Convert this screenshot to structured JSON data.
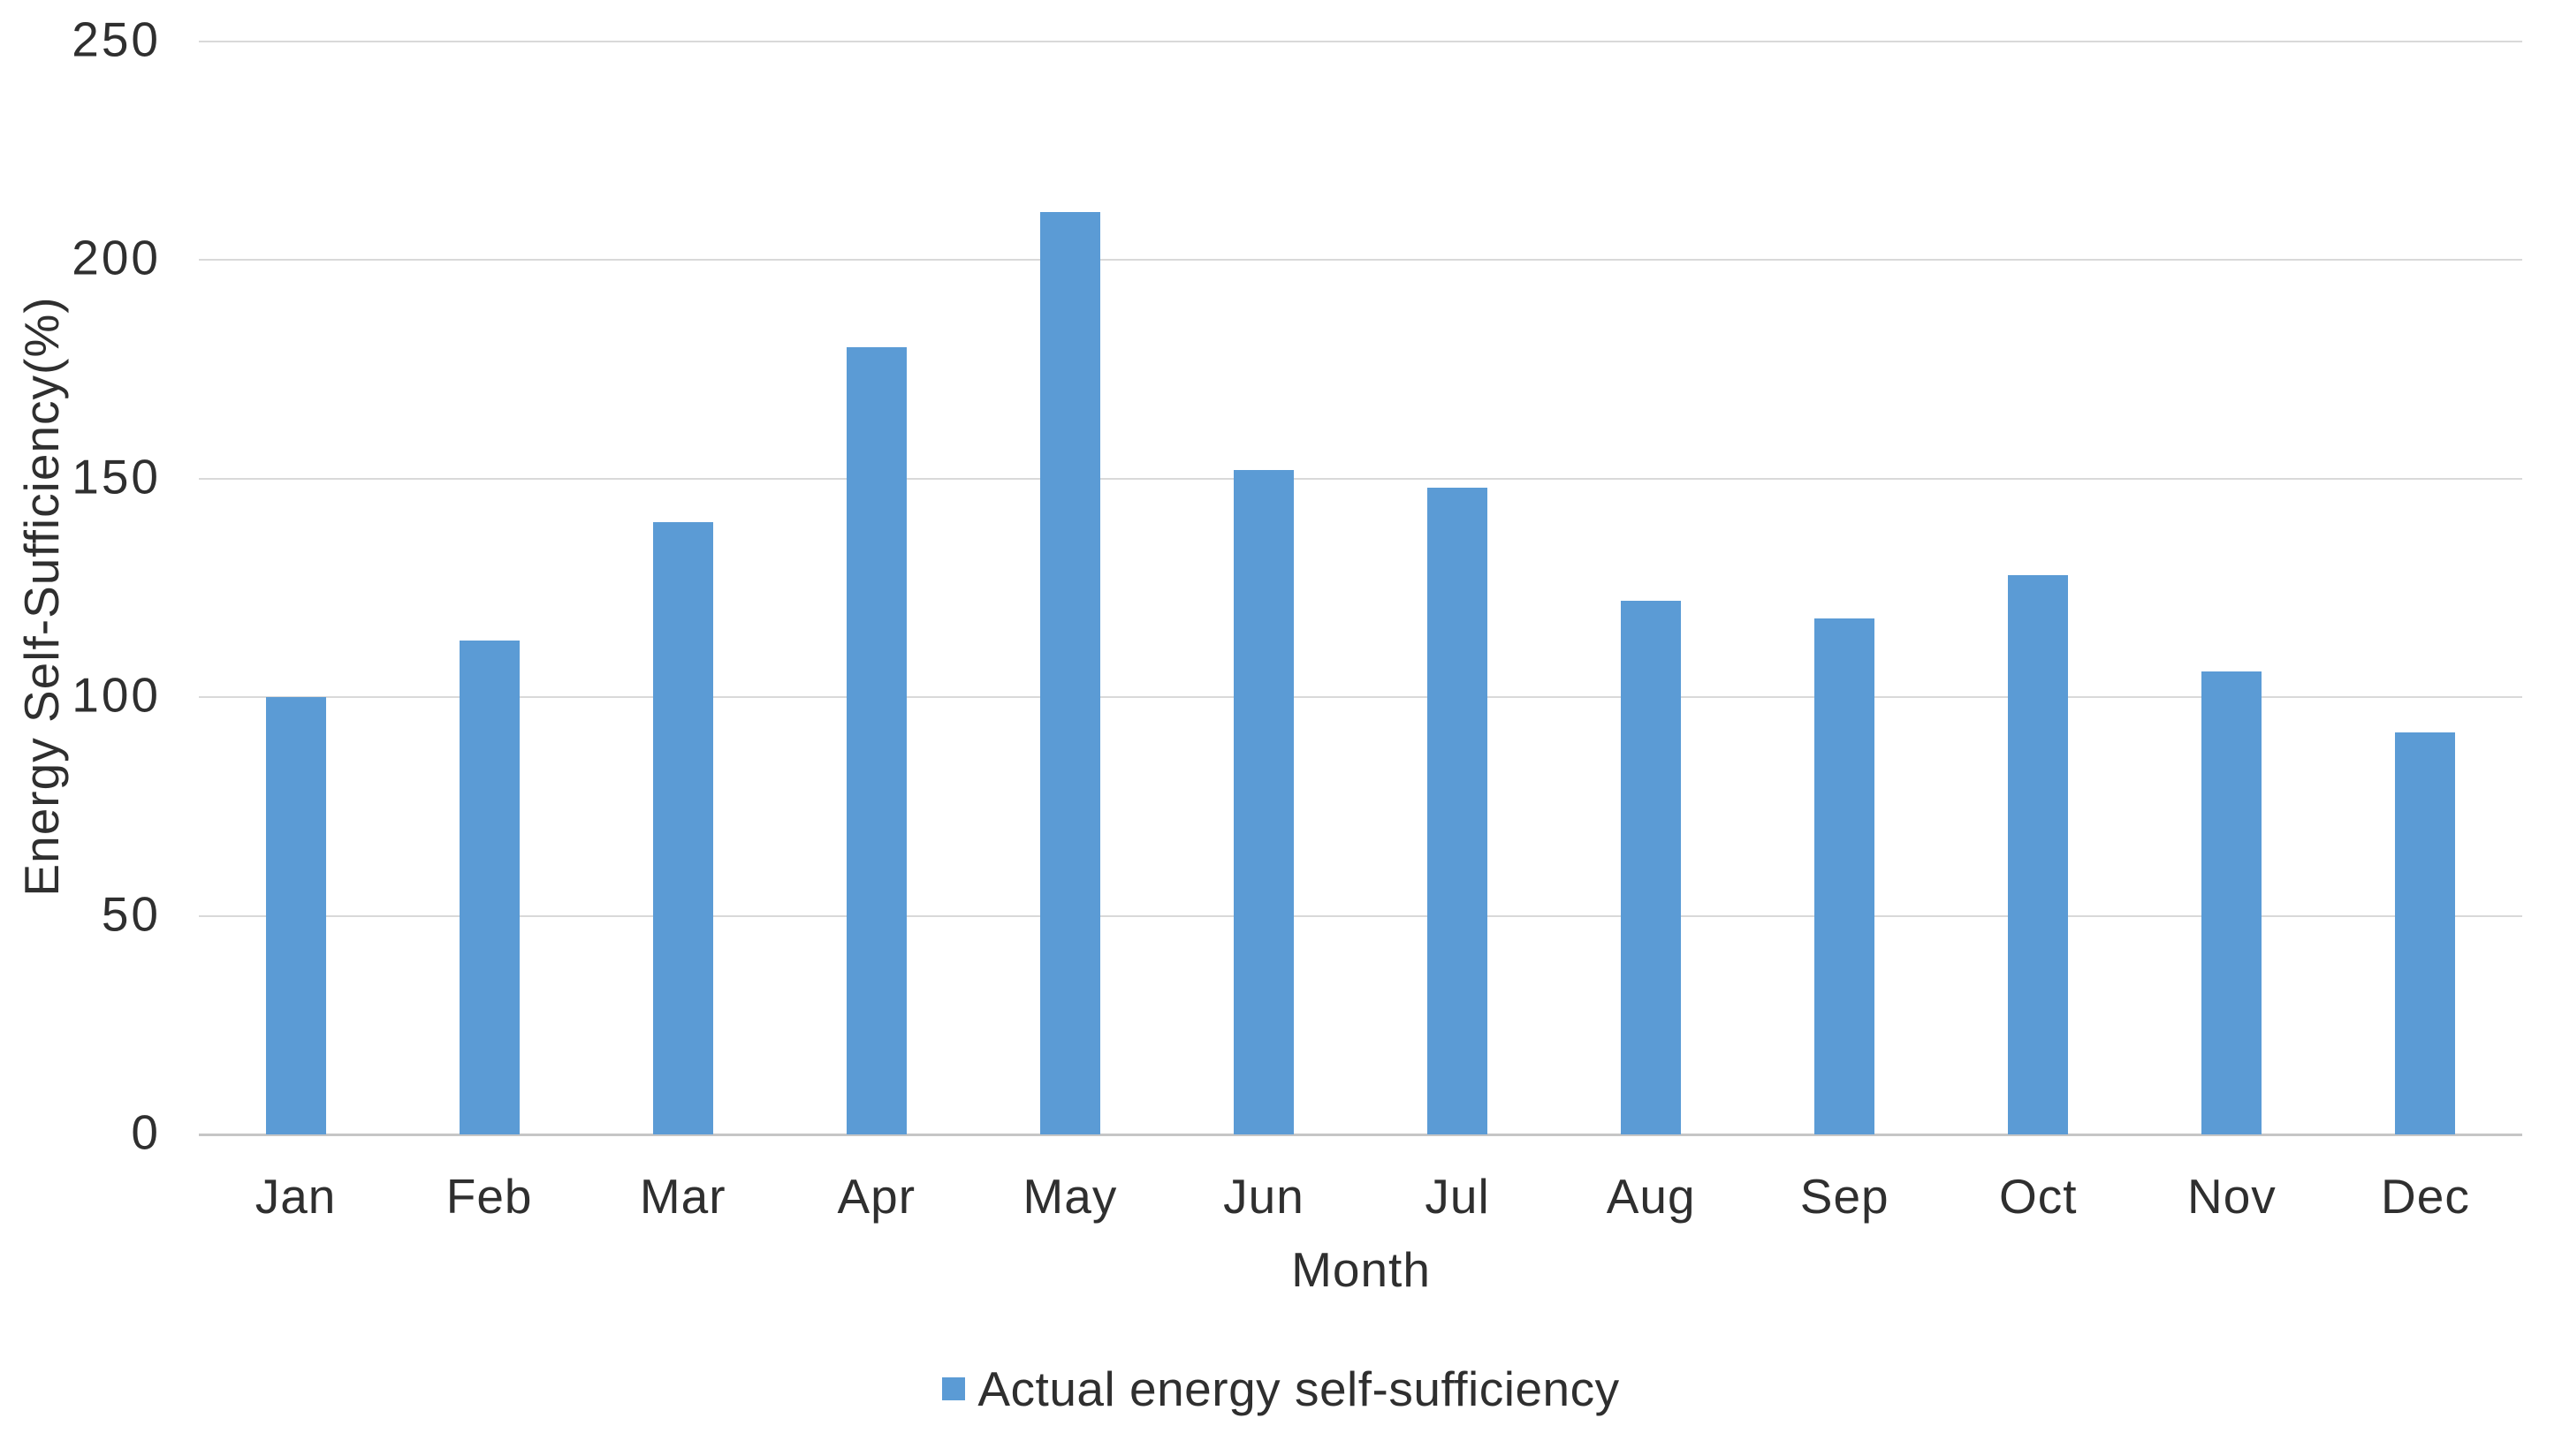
{
  "chart_data": {
    "type": "bar",
    "title": "",
    "categories": [
      "Jan",
      "Feb",
      "Mar",
      "Apr",
      "May",
      "Jun",
      "Jul",
      "Aug",
      "Sep",
      "Oct",
      "Nov",
      "Dec"
    ],
    "series": [
      {
        "name": "Actual energy self-sufficiency",
        "values": [
          100,
          113,
          140,
          180,
          211,
          152,
          148,
          122,
          118,
          128,
          106,
          92
        ]
      }
    ],
    "xlabel": "Month",
    "ylabel": "Energy Self-Sufficiency(%)",
    "ylim": [
      0,
      250
    ],
    "yticks": [
      0,
      50,
      100,
      150,
      200,
      250
    ],
    "y_tick_labels": [
      "0",
      "50",
      "100",
      "150",
      "200",
      "250"
    ],
    "grid": true,
    "legend_position": "bottom",
    "bar_color": "#5B9BD5"
  },
  "colors": {
    "bar": "#5B9BD5",
    "gridline": "#D9D9D9",
    "axis_line": "#C6C6C6",
    "text": "#2F2F2F",
    "background": "#FFFFFF"
  },
  "axes": {
    "x_title": "Month",
    "y_title": "Energy Self-Sufficiency(%)"
  },
  "legend": {
    "label": "Actual energy self-sufficiency",
    "marker_color": "#5B9BD5"
  }
}
